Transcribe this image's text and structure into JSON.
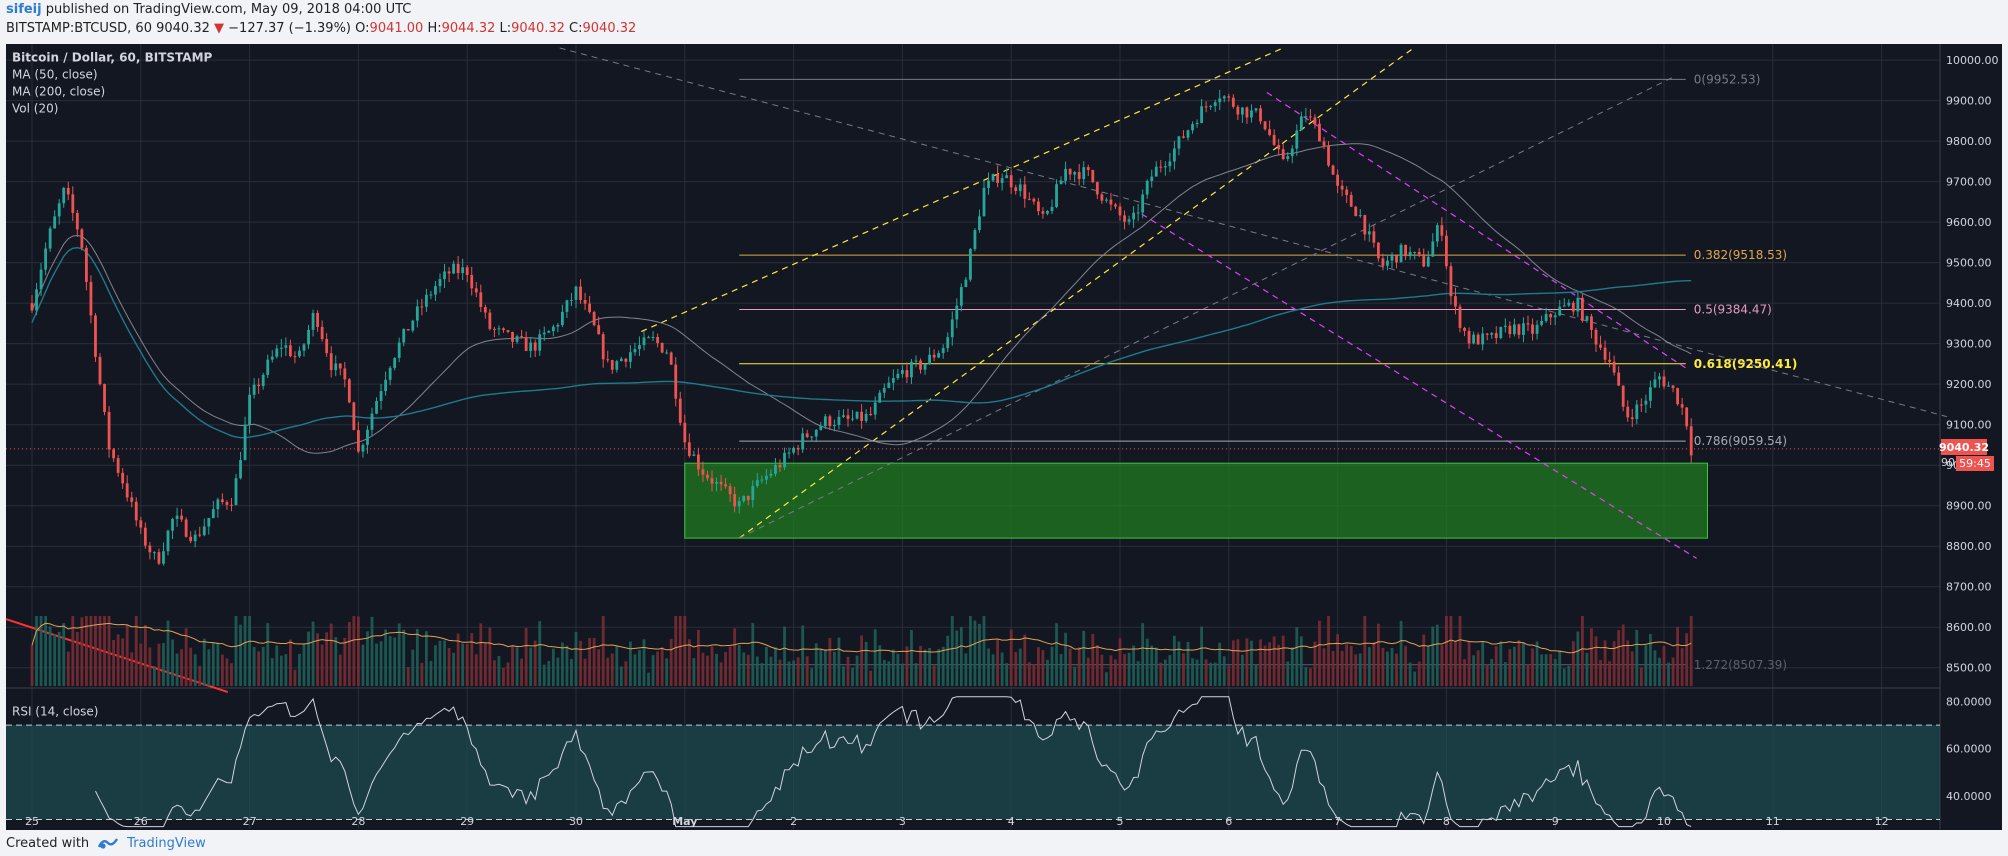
{
  "header": {
    "author": "sifeij",
    "published": "published on TradingView.com, May 09, 2018 04:00 UTC",
    "symbol": "BITSTAMP:BTCUSD, 60",
    "last": "9040.32",
    "change": "−127.37 (−1.39%)",
    "o_label": "O:",
    "o": "9041.00",
    "h_label": "H:",
    "h": "9044.32",
    "l_label": "L:",
    "l": "9040.32",
    "c_label": "C:",
    "c": "9040.32"
  },
  "legend": {
    "title": "Bitcoin / Dollar, 60, BITSTAMP",
    "items": [
      "MA (50, close)",
      "MA (200, close)",
      "Vol (20)"
    ]
  },
  "rsi_label": "RSI (14, close)",
  "price_badge": "9040.32",
  "countdown_badge": "59:45",
  "countdown_prefix": "90",
  "footer": {
    "created": "Created with",
    "brand": "TradingView"
  },
  "colors": {
    "background": "#131722",
    "up": "#26a69a",
    "down": "#ef5350",
    "zone": "#1f7a1f",
    "fib_yellow": "#ffeb3b",
    "trend_magenta": "#e040fb",
    "rsi_band": "#1e4a4f"
  },
  "chart_data": {
    "type": "candlestick",
    "title": "Bitcoin / Dollar, 60, BITSTAMP",
    "timeframe": "60",
    "x_ticks": [
      "25",
      "26",
      "27",
      "28",
      "29",
      "30",
      "May",
      "2",
      "3",
      "4",
      "5",
      "6",
      "7",
      "8",
      "9",
      "10",
      "11",
      "12"
    ],
    "y_ticks": [
      "10000.00",
      "9900.00",
      "9800.00",
      "9700.00",
      "9600.00",
      "9500.00",
      "9400.00",
      "9300.00",
      "9200.00",
      "9100.00",
      "9000.00",
      "8900.00",
      "8800.00",
      "8700.00",
      "8600.00",
      "8500.00"
    ],
    "ylim": [
      8450,
      10020
    ],
    "rsi_ticks": [
      "80.0000",
      "60.0000",
      "40.0000"
    ],
    "rsi_ylim": [
      26,
      84
    ],
    "rsi_bands": [
      70,
      30
    ],
    "fib_levels": [
      {
        "label": "0(9952.53)",
        "value": 9952.53
      },
      {
        "label": "0.382(9518.53)",
        "value": 9518.53
      },
      {
        "label": "0.5(9384.47)",
        "value": 9384.47
      },
      {
        "label": "0.618(9250.41)",
        "value": 9250.41
      },
      {
        "label": "0.786(9059.54)",
        "value": 9059.54
      },
      {
        "label": "1.272(8507.39)",
        "value": 8507.39
      }
    ],
    "zone": {
      "from": 8820,
      "to": 9005,
      "start_day": 6.0,
      "end_day": 15.4
    },
    "last_price": 9040.32,
    "price_path": [
      [
        0,
        9400
      ],
      [
        0.15,
        9560
      ],
      [
        0.3,
        9680
      ],
      [
        0.45,
        9560
      ],
      [
        0.55,
        9350
      ],
      [
        0.7,
        9050
      ],
      [
        0.85,
        8950
      ],
      [
        1.0,
        8830
      ],
      [
        1.15,
        8760
      ],
      [
        1.3,
        8870
      ],
      [
        1.5,
        8820
      ],
      [
        1.7,
        8900
      ],
      [
        1.85,
        8920
      ],
      [
        2.0,
        9160
      ],
      [
        2.15,
        9240
      ],
      [
        2.3,
        9300
      ],
      [
        2.45,
        9260
      ],
      [
        2.6,
        9380
      ],
      [
        2.75,
        9250
      ],
      [
        2.9,
        9200
      ],
      [
        3.0,
        9030
      ],
      [
        3.15,
        9150
      ],
      [
        3.3,
        9260
      ],
      [
        3.5,
        9360
      ],
      [
        3.7,
        9440
      ],
      [
        3.85,
        9480
      ],
      [
        4.0,
        9480
      ],
      [
        4.2,
        9340
      ],
      [
        4.4,
        9310
      ],
      [
        4.6,
        9290
      ],
      [
        4.8,
        9340
      ],
      [
        5.0,
        9430
      ],
      [
        5.15,
        9350
      ],
      [
        5.3,
        9240
      ],
      [
        5.5,
        9280
      ],
      [
        5.7,
        9310
      ],
      [
        5.85,
        9280
      ],
      [
        6.0,
        9060
      ],
      [
        6.15,
        8990
      ],
      [
        6.3,
        8950
      ],
      [
        6.5,
        8900
      ],
      [
        6.7,
        8960
      ],
      [
        6.9,
        9010
      ],
      [
        7.1,
        9070
      ],
      [
        7.3,
        9110
      ],
      [
        7.5,
        9110
      ],
      [
        7.7,
        9120
      ],
      [
        7.85,
        9190
      ],
      [
        8.0,
        9230
      ],
      [
        8.2,
        9250
      ],
      [
        8.4,
        9300
      ],
      [
        8.6,
        9490
      ],
      [
        8.75,
        9680
      ],
      [
        8.9,
        9720
      ],
      [
        9.1,
        9680
      ],
      [
        9.3,
        9600
      ],
      [
        9.5,
        9730
      ],
      [
        9.7,
        9720
      ],
      [
        9.9,
        9640
      ],
      [
        10.1,
        9590
      ],
      [
        10.3,
        9720
      ],
      [
        10.5,
        9780
      ],
      [
        10.7,
        9860
      ],
      [
        10.9,
        9920
      ],
      [
        11.1,
        9880
      ],
      [
        11.3,
        9860
      ],
      [
        11.5,
        9740
      ],
      [
        11.7,
        9870
      ],
      [
        11.85,
        9810
      ],
      [
        12.0,
        9680
      ],
      [
        12.2,
        9620
      ],
      [
        12.4,
        9490
      ],
      [
        12.6,
        9530
      ],
      [
        12.8,
        9500
      ],
      [
        12.95,
        9600
      ],
      [
        13.05,
        9400
      ],
      [
        13.2,
        9310
      ],
      [
        13.4,
        9310
      ],
      [
        13.6,
        9340
      ],
      [
        13.8,
        9330
      ],
      [
        14.0,
        9380
      ],
      [
        14.2,
        9400
      ],
      [
        14.35,
        9320
      ],
      [
        14.5,
        9260
      ],
      [
        14.65,
        9120
      ],
      [
        14.8,
        9150
      ],
      [
        14.95,
        9220
      ],
      [
        15.1,
        9180
      ],
      [
        15.2,
        9120
      ],
      [
        15.25,
        9040
      ]
    ]
  }
}
